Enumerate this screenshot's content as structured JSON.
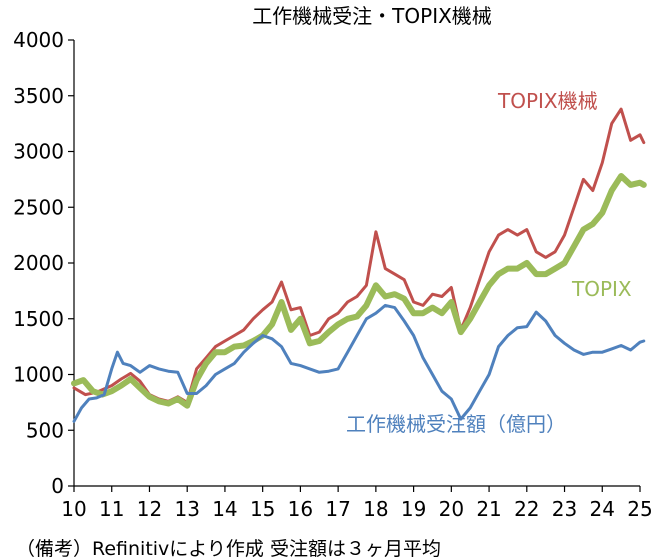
{
  "chart_data": {
    "type": "line",
    "title": "工作機械受注・TOPIX機械",
    "xlabel": "",
    "ylabel": "",
    "ylim": [
      0,
      4000
    ],
    "xlim": [
      10,
      25
    ],
    "y_ticks": [
      "0",
      "500",
      "1000",
      "1500",
      "2000",
      "2500",
      "3000",
      "3500",
      "4000"
    ],
    "x_ticks": [
      "10",
      "11",
      "12",
      "13",
      "14",
      "15",
      "16",
      "17",
      "18",
      "19",
      "20",
      "21",
      "22",
      "23",
      "24",
      "25"
    ],
    "grid": false,
    "legend": "inline labels",
    "footnote": "（備考）Refinitivにより作成 受注額は３ヶ月平均",
    "series": [
      {
        "name": "TOPIX機械",
        "color": "#C0504D",
        "points": [
          [
            10.0,
            880
          ],
          [
            10.3,
            820
          ],
          [
            10.6,
            840
          ],
          [
            11.0,
            900
          ],
          [
            11.25,
            960
          ],
          [
            11.5,
            1010
          ],
          [
            11.75,
            940
          ],
          [
            12.0,
            820
          ],
          [
            12.25,
            780
          ],
          [
            12.5,
            760
          ],
          [
            12.75,
            800
          ],
          [
            13.0,
            750
          ],
          [
            13.25,
            1050
          ],
          [
            13.5,
            1150
          ],
          [
            13.75,
            1250
          ],
          [
            14.0,
            1300
          ],
          [
            14.25,
            1350
          ],
          [
            14.5,
            1400
          ],
          [
            14.75,
            1500
          ],
          [
            15.0,
            1580
          ],
          [
            15.25,
            1650
          ],
          [
            15.5,
            1830
          ],
          [
            15.75,
            1580
          ],
          [
            16.0,
            1600
          ],
          [
            16.25,
            1350
          ],
          [
            16.5,
            1380
          ],
          [
            16.75,
            1500
          ],
          [
            17.0,
            1550
          ],
          [
            17.25,
            1650
          ],
          [
            17.5,
            1700
          ],
          [
            17.75,
            1800
          ],
          [
            18.0,
            2280
          ],
          [
            18.25,
            1950
          ],
          [
            18.5,
            1900
          ],
          [
            18.75,
            1850
          ],
          [
            19.0,
            1650
          ],
          [
            19.25,
            1620
          ],
          [
            19.5,
            1720
          ],
          [
            19.75,
            1700
          ],
          [
            20.0,
            1780
          ],
          [
            20.25,
            1400
          ],
          [
            20.5,
            1600
          ],
          [
            20.75,
            1850
          ],
          [
            21.0,
            2100
          ],
          [
            21.25,
            2250
          ],
          [
            21.5,
            2300
          ],
          [
            21.75,
            2250
          ],
          [
            22.0,
            2300
          ],
          [
            22.25,
            2100
          ],
          [
            22.5,
            2050
          ],
          [
            22.75,
            2100
          ],
          [
            23.0,
            2250
          ],
          [
            23.25,
            2500
          ],
          [
            23.5,
            2750
          ],
          [
            23.75,
            2650
          ],
          [
            24.0,
            2900
          ],
          [
            24.25,
            3250
          ],
          [
            24.5,
            3380
          ],
          [
            24.75,
            3100
          ],
          [
            25.0,
            3150
          ],
          [
            25.1,
            3080
          ]
        ]
      },
      {
        "name": "TOPIX",
        "color": "#9BBB59",
        "points": [
          [
            10.0,
            920
          ],
          [
            10.25,
            950
          ],
          [
            10.5,
            850
          ],
          [
            10.75,
            820
          ],
          [
            11.0,
            850
          ],
          [
            11.25,
            900
          ],
          [
            11.5,
            960
          ],
          [
            11.75,
            880
          ],
          [
            12.0,
            800
          ],
          [
            12.25,
            760
          ],
          [
            12.5,
            740
          ],
          [
            12.75,
            780
          ],
          [
            13.0,
            720
          ],
          [
            13.25,
            950
          ],
          [
            13.5,
            1100
          ],
          [
            13.75,
            1200
          ],
          [
            14.0,
            1200
          ],
          [
            14.25,
            1250
          ],
          [
            14.5,
            1260
          ],
          [
            14.75,
            1300
          ],
          [
            15.0,
            1350
          ],
          [
            15.25,
            1450
          ],
          [
            15.5,
            1650
          ],
          [
            15.75,
            1400
          ],
          [
            16.0,
            1500
          ],
          [
            16.25,
            1280
          ],
          [
            16.5,
            1300
          ],
          [
            16.75,
            1380
          ],
          [
            17.0,
            1450
          ],
          [
            17.25,
            1500
          ],
          [
            17.5,
            1520
          ],
          [
            17.75,
            1620
          ],
          [
            18.0,
            1800
          ],
          [
            18.25,
            1700
          ],
          [
            18.5,
            1720
          ],
          [
            18.75,
            1680
          ],
          [
            19.0,
            1550
          ],
          [
            19.25,
            1550
          ],
          [
            19.5,
            1600
          ],
          [
            19.75,
            1550
          ],
          [
            20.0,
            1650
          ],
          [
            20.25,
            1380
          ],
          [
            20.5,
            1500
          ],
          [
            20.75,
            1650
          ],
          [
            21.0,
            1800
          ],
          [
            21.25,
            1900
          ],
          [
            21.5,
            1950
          ],
          [
            21.75,
            1950
          ],
          [
            22.0,
            2000
          ],
          [
            22.25,
            1900
          ],
          [
            22.5,
            1900
          ],
          [
            22.75,
            1950
          ],
          [
            23.0,
            2000
          ],
          [
            23.25,
            2150
          ],
          [
            23.5,
            2300
          ],
          [
            23.75,
            2350
          ],
          [
            24.0,
            2450
          ],
          [
            24.25,
            2650
          ],
          [
            24.5,
            2780
          ],
          [
            24.75,
            2700
          ],
          [
            25.0,
            2720
          ],
          [
            25.1,
            2700
          ]
        ]
      },
      {
        "name": "工作機械受注額（億円）",
        "color": "#4F81BD",
        "points": [
          [
            10.0,
            580
          ],
          [
            10.2,
            700
          ],
          [
            10.4,
            780
          ],
          [
            10.6,
            790
          ],
          [
            10.8,
            820
          ],
          [
            11.0,
            1050
          ],
          [
            11.15,
            1200
          ],
          [
            11.3,
            1100
          ],
          [
            11.5,
            1080
          ],
          [
            11.75,
            1020
          ],
          [
            12.0,
            1080
          ],
          [
            12.25,
            1050
          ],
          [
            12.5,
            1030
          ],
          [
            12.75,
            1020
          ],
          [
            13.0,
            830
          ],
          [
            13.25,
            830
          ],
          [
            13.5,
            900
          ],
          [
            13.75,
            1000
          ],
          [
            14.0,
            1050
          ],
          [
            14.25,
            1100
          ],
          [
            14.5,
            1200
          ],
          [
            14.75,
            1280
          ],
          [
            15.0,
            1350
          ],
          [
            15.25,
            1320
          ],
          [
            15.5,
            1250
          ],
          [
            15.75,
            1100
          ],
          [
            16.0,
            1080
          ],
          [
            16.25,
            1050
          ],
          [
            16.5,
            1020
          ],
          [
            16.75,
            1030
          ],
          [
            17.0,
            1050
          ],
          [
            17.25,
            1200
          ],
          [
            17.5,
            1350
          ],
          [
            17.75,
            1500
          ],
          [
            18.0,
            1550
          ],
          [
            18.25,
            1620
          ],
          [
            18.5,
            1600
          ],
          [
            18.75,
            1480
          ],
          [
            19.0,
            1350
          ],
          [
            19.25,
            1150
          ],
          [
            19.5,
            1000
          ],
          [
            19.75,
            850
          ],
          [
            20.0,
            780
          ],
          [
            20.25,
            600
          ],
          [
            20.5,
            700
          ],
          [
            20.75,
            850
          ],
          [
            21.0,
            1000
          ],
          [
            21.25,
            1250
          ],
          [
            21.5,
            1350
          ],
          [
            21.75,
            1420
          ],
          [
            22.0,
            1430
          ],
          [
            22.25,
            1560
          ],
          [
            22.5,
            1480
          ],
          [
            22.75,
            1350
          ],
          [
            23.0,
            1280
          ],
          [
            23.25,
            1220
          ],
          [
            23.5,
            1180
          ],
          [
            23.75,
            1200
          ],
          [
            24.0,
            1200
          ],
          [
            24.25,
            1230
          ],
          [
            24.5,
            1260
          ],
          [
            24.75,
            1220
          ],
          [
            25.0,
            1290
          ],
          [
            25.1,
            1300
          ]
        ]
      }
    ]
  }
}
